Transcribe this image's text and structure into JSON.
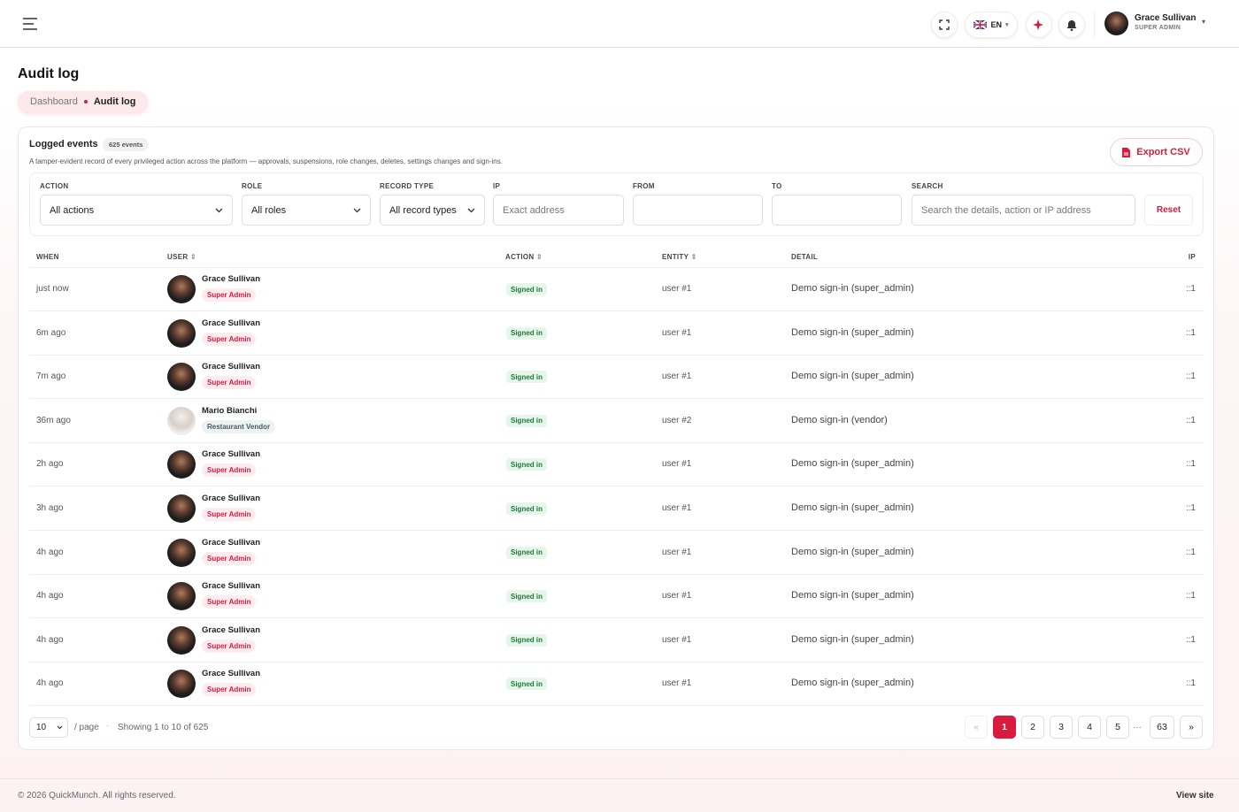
{
  "header": {
    "language": "EN",
    "user_name": "Grace Sullivan",
    "user_role": "SUPER ADMIN"
  },
  "page": {
    "title": "Audit log",
    "breadcrumb": [
      "Dashboard",
      "Audit log"
    ]
  },
  "card": {
    "title": "Logged events",
    "count": "625 events",
    "description": "A tamper-evident record of every privileged action across the platform — approvals, suspensions, role changes, deletes, settings changes and sign-ins.",
    "export": "Export CSV"
  },
  "filters": [
    {
      "label": "ACTION",
      "value": "All actions"
    },
    {
      "label": "ROLE",
      "value": "All roles"
    },
    {
      "label": "RECORD TYPE",
      "value": "All record types"
    },
    {
      "label": "IP",
      "placeholder": "Exact address"
    },
    {
      "label": "FROM"
    },
    {
      "label": "TO"
    },
    {
      "label": "SEARCH",
      "placeholder": "Search the details, action or IP address"
    }
  ],
  "reset": "Reset",
  "table": {
    "columns": [
      "WHEN",
      "USER",
      "ACTION",
      "ENTITY",
      "DETAIL",
      "IP"
    ],
    "rows": [
      {
        "when": "just now",
        "user": "Grace Sullivan",
        "role": "Super Admin",
        "action": "Signed in",
        "entity": "user #1",
        "detail": "Demo sign-in (super_admin)",
        "ip": "::1"
      },
      {
        "when": "6m ago",
        "user": "Grace Sullivan",
        "role": "Super Admin",
        "action": "Signed in",
        "entity": "user #1",
        "detail": "Demo sign-in (super_admin)",
        "ip": "::1"
      },
      {
        "when": "7m ago",
        "user": "Grace Sullivan",
        "role": "Super Admin",
        "action": "Signed in",
        "entity": "user #1",
        "detail": "Demo sign-in (super_admin)",
        "ip": "::1"
      },
      {
        "when": "36m ago",
        "user": "Mario Bianchi",
        "role": "Restaurant Vendor",
        "action": "Signed in",
        "entity": "user #2",
        "detail": "Demo sign-in (vendor)",
        "ip": "::1"
      },
      {
        "when": "2h ago",
        "user": "Grace Sullivan",
        "role": "Super Admin",
        "action": "Signed in",
        "entity": "user #1",
        "detail": "Demo sign-in (super_admin)",
        "ip": "::1"
      },
      {
        "when": "3h ago",
        "user": "Grace Sullivan",
        "role": "Super Admin",
        "action": "Signed in",
        "entity": "user #1",
        "detail": "Demo sign-in (super_admin)",
        "ip": "::1"
      },
      {
        "when": "4h ago",
        "user": "Grace Sullivan",
        "role": "Super Admin",
        "action": "Signed in",
        "entity": "user #1",
        "detail": "Demo sign-in (super_admin)",
        "ip": "::1"
      },
      {
        "when": "4h ago",
        "user": "Grace Sullivan",
        "role": "Super Admin",
        "action": "Signed in",
        "entity": "user #1",
        "detail": "Demo sign-in (super_admin)",
        "ip": "::1"
      },
      {
        "when": "4h ago",
        "user": "Grace Sullivan",
        "role": "Super Admin",
        "action": "Signed in",
        "entity": "user #1",
        "detail": "Demo sign-in (super_admin)",
        "ip": "::1"
      },
      {
        "when": "4h ago",
        "user": "Grace Sullivan",
        "role": "Super Admin",
        "action": "Signed in",
        "entity": "user #1",
        "detail": "Demo sign-in (super_admin)",
        "ip": "::1"
      }
    ]
  },
  "pagination": {
    "per_page": "10",
    "per_page_label": "/ page",
    "showing": "Showing 1 to 10 of 625",
    "pages": [
      "«",
      "1",
      "2",
      "3",
      "4",
      "5",
      "…",
      "63",
      "»"
    ],
    "current": "1"
  },
  "footer": {
    "copyright": "© 2026 QuickMunch. All rights reserved.",
    "link": "View site"
  }
}
